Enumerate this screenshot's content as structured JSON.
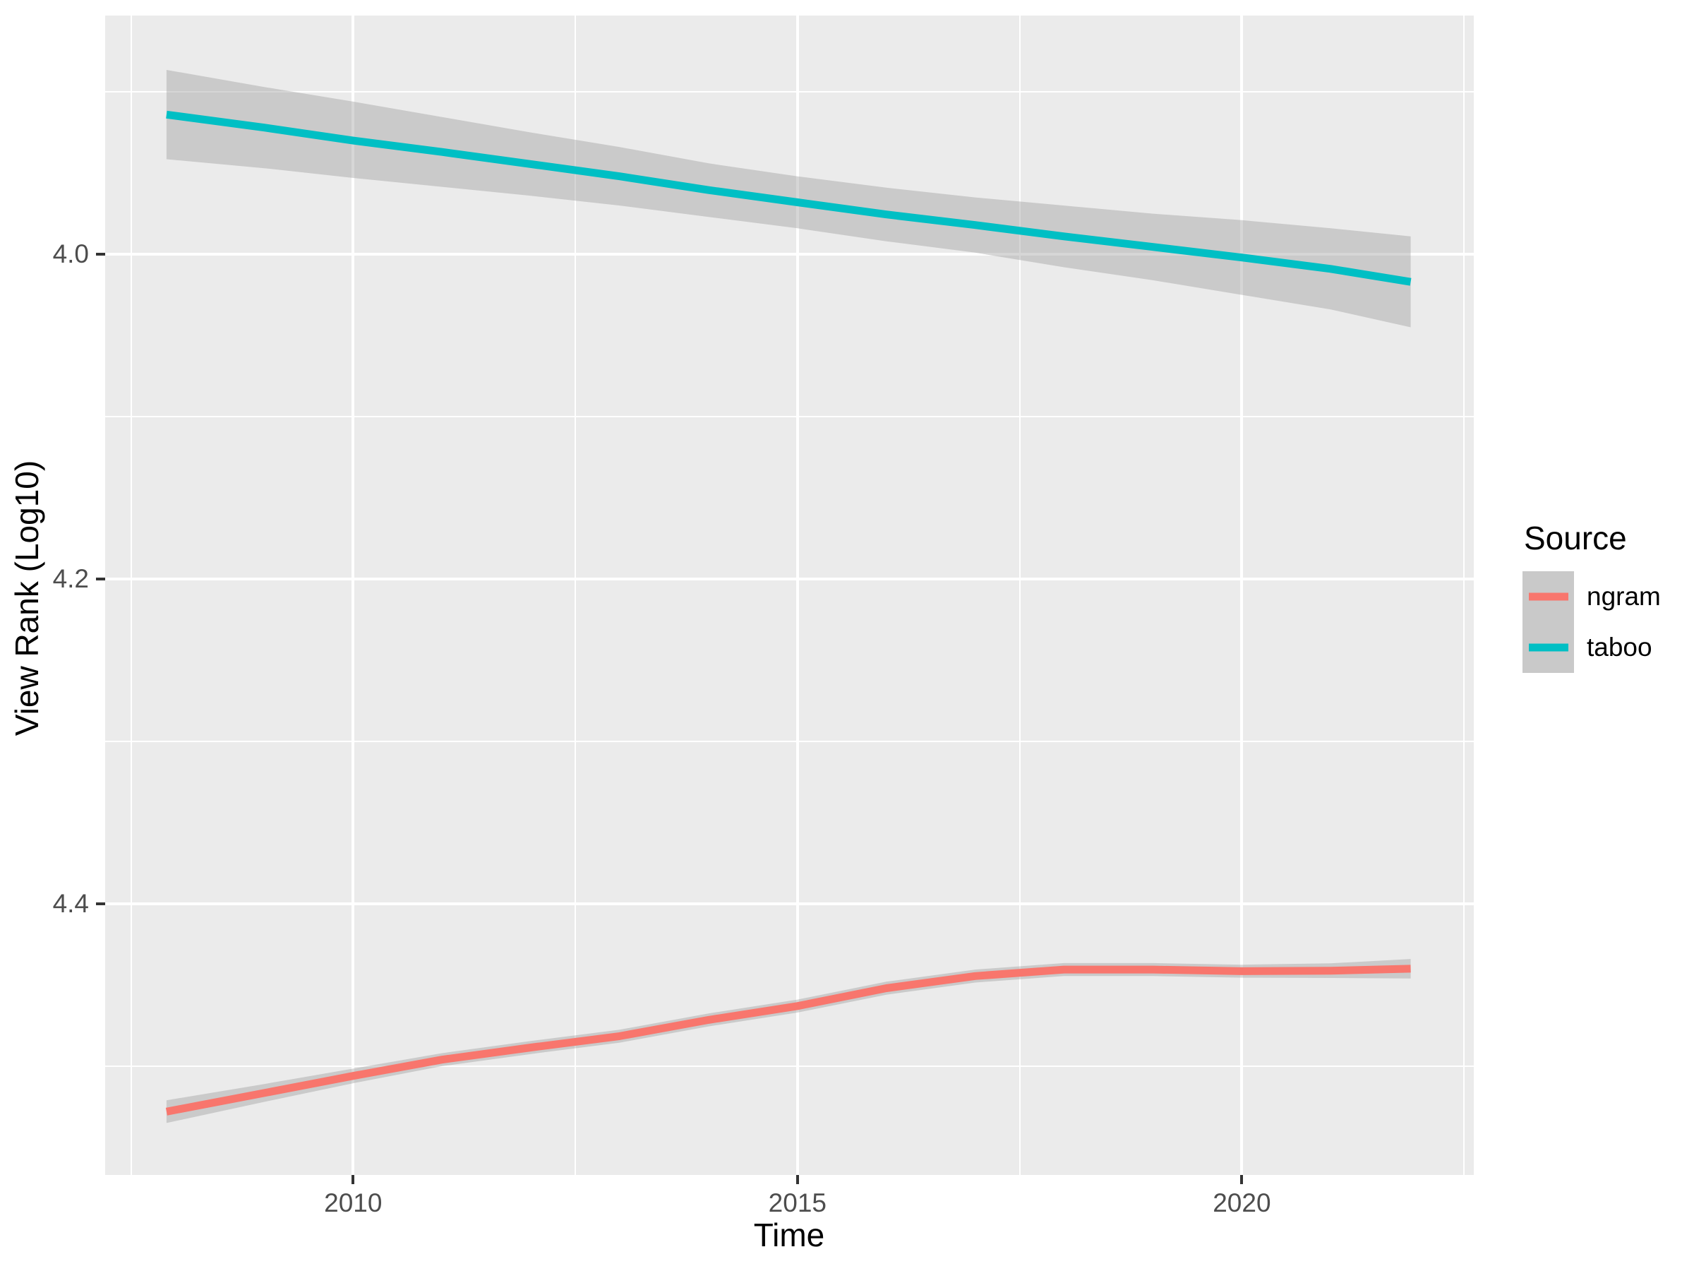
{
  "chart_data": {
    "type": "line",
    "title": "",
    "xlabel": "Time",
    "ylabel": "View Rank (Log10)",
    "panel_bg": "#EBEBEB",
    "grid_color": "#FFFFFF",
    "tick_color": "#333333",
    "tick_label_color": "#4D4D4D",
    "ci_fill": "rgba(153,153,153,0.4)",
    "x_axis": {
      "label": "Time",
      "domain": [
        2007.21,
        2022.61
      ],
      "ticks": [
        2010,
        2015,
        2020
      ],
      "tick_labels": [
        "2010",
        "2015",
        "2020"
      ],
      "minor_ticks": [
        2007.5,
        2012.5,
        2017.5,
        2022.5
      ]
    },
    "y_axis": {
      "label": "View Rank (Log10)",
      "reversed": true,
      "domain_top_to_bottom": [
        3.853,
        4.567
      ],
      "ticks": [
        4.0,
        4.2,
        4.4
      ],
      "tick_labels": [
        "4.0",
        "4.2",
        "4.4"
      ],
      "minor_ticks": [
        3.9,
        4.1,
        4.3,
        4.5
      ]
    },
    "legend": {
      "title": "Source",
      "position": "right",
      "key_bg": "#C9C9C9",
      "entries": [
        {
          "label": "ngram",
          "color": "#F8766D"
        },
        {
          "label": "taboo",
          "color": "#00BFC4"
        }
      ]
    },
    "series": [
      {
        "name": "taboo",
        "color": "#00BFC4",
        "smoothed": true,
        "x": [
          2007.9,
          2009,
          2010,
          2011,
          2012,
          2013,
          2014,
          2015,
          2016,
          2017,
          2018,
          2019,
          2020,
          2021,
          2021.9
        ],
        "y": [
          3.914,
          3.922,
          3.93,
          3.937,
          3.9445,
          3.952,
          3.9605,
          3.968,
          3.9755,
          3.982,
          3.989,
          3.9955,
          4.002,
          4.009,
          4.017
        ],
        "ci_low": [
          3.8865,
          3.897,
          3.906,
          3.9155,
          3.925,
          3.934,
          3.944,
          3.952,
          3.959,
          3.965,
          3.97,
          3.975,
          3.979,
          3.984,
          3.989
        ],
        "ci_high": [
          3.9415,
          3.947,
          3.953,
          3.9585,
          3.964,
          3.97,
          3.977,
          3.984,
          3.992,
          3.999,
          4.008,
          4.016,
          4.025,
          4.034,
          4.045
        ]
      },
      {
        "name": "ngram",
        "color": "#F8766D",
        "smoothed": true,
        "x": [
          2007.9,
          2009,
          2010,
          2011,
          2012,
          2013,
          2014,
          2015,
          2016,
          2017,
          2018,
          2019,
          2020,
          2021,
          2021.9
        ],
        "y": [
          4.528,
          4.5165,
          4.506,
          4.496,
          4.4885,
          4.4815,
          4.4715,
          4.463,
          4.452,
          4.4445,
          4.4405,
          4.4405,
          4.4415,
          4.4412,
          4.44
        ],
        "ci_low": [
          4.521,
          4.511,
          4.5015,
          4.492,
          4.4845,
          4.4775,
          4.4675,
          4.459,
          4.448,
          4.4405,
          4.4365,
          4.4365,
          4.4375,
          4.4367,
          4.434
        ],
        "ci_high": [
          4.535,
          4.522,
          4.5105,
          4.5,
          4.4925,
          4.4855,
          4.4755,
          4.467,
          4.456,
          4.4485,
          4.4445,
          4.4445,
          4.4455,
          4.4457,
          4.446
        ]
      }
    ]
  }
}
